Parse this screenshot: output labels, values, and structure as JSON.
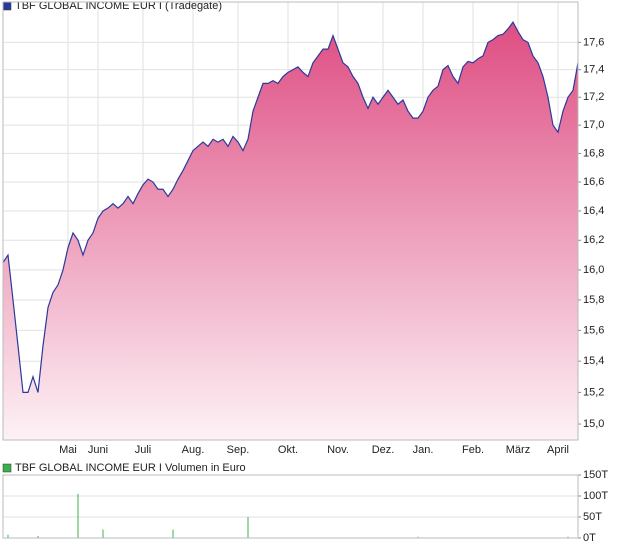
{
  "chart_data": [
    {
      "type": "area",
      "log_scale": true,
      "grid": true,
      "series": [
        {
          "name": "TBF GLOBAL INCOME EUR I (Tradegate)",
          "color": "#2a3a9a",
          "values": [
            16.05,
            16.1,
            15.8,
            15.5,
            15.2,
            15.2,
            15.3,
            15.2,
            15.5,
            15.75,
            15.85,
            15.9,
            16.0,
            16.15,
            16.25,
            16.2,
            16.1,
            16.2,
            16.25,
            16.35,
            16.4,
            16.42,
            16.45,
            16.42,
            16.45,
            16.5,
            16.45,
            16.52,
            16.58,
            16.62,
            16.6,
            16.55,
            16.55,
            16.5,
            16.55,
            16.62,
            16.68,
            16.75,
            16.82,
            16.85,
            16.88,
            16.85,
            16.9,
            16.88,
            16.9,
            16.85,
            16.92,
            16.88,
            16.82,
            16.9,
            17.1,
            17.2,
            17.3,
            17.3,
            17.32,
            17.3,
            17.35,
            17.38,
            17.4,
            17.42,
            17.38,
            17.35,
            17.45,
            17.5,
            17.55,
            17.55,
            17.65,
            17.55,
            17.45,
            17.42,
            17.35,
            17.3,
            17.2,
            17.12,
            17.2,
            17.15,
            17.2,
            17.25,
            17.2,
            17.15,
            17.18,
            17.1,
            17.05,
            17.05,
            17.1,
            17.2,
            17.25,
            17.28,
            17.4,
            17.43,
            17.35,
            17.3,
            17.42,
            17.46,
            17.45,
            17.48,
            17.5,
            17.6,
            17.62,
            17.65,
            17.66,
            17.7,
            17.75,
            17.68,
            17.62,
            17.6,
            17.5,
            17.45,
            17.35,
            17.2,
            17.0,
            16.95,
            17.1,
            17.2,
            17.25,
            17.45
          ]
        }
      ],
      "categories": [
        null,
        null,
        null,
        null,
        null,
        null,
        null,
        null,
        null,
        null,
        null,
        null,
        null,
        "Mai",
        null,
        null,
        null,
        null,
        null,
        "Juni",
        null,
        null,
        null,
        null,
        null,
        null,
        null,
        null,
        "Juli",
        null,
        null,
        null,
        null,
        null,
        null,
        null,
        null,
        null,
        "Aug.",
        null,
        null,
        null,
        null,
        null,
        null,
        null,
        null,
        "Sep.",
        null,
        null,
        null,
        null,
        null,
        null,
        null,
        null,
        null,
        "Okt.",
        null,
        null,
        null,
        null,
        null,
        null,
        null,
        null,
        null,
        "Nov.",
        null,
        null,
        null,
        null,
        null,
        null,
        null,
        null,
        "Dez.",
        null,
        null,
        null,
        null,
        null,
        null,
        null,
        "Jan.",
        null,
        null,
        null,
        null,
        null,
        null,
        null,
        null,
        null,
        "Feb.",
        null,
        null,
        null,
        null,
        null,
        null,
        null,
        null,
        "März",
        null,
        null,
        null,
        null,
        null,
        null,
        null,
        "April",
        null,
        null,
        null,
        null
      ],
      "ylim": [
        14.9,
        17.9
      ],
      "yticks": [
        {
          "value": 15.0,
          "label": "15,0"
        },
        {
          "value": 15.2,
          "label": "15,2"
        },
        {
          "value": 15.4,
          "label": "15,4"
        },
        {
          "value": 15.6,
          "label": "15,6"
        },
        {
          "value": 15.8,
          "label": "15,8"
        },
        {
          "value": 16.0,
          "label": "16,0"
        },
        {
          "value": 16.2,
          "label": "16,2"
        },
        {
          "value": 16.4,
          "label": "16,4"
        },
        {
          "value": 16.6,
          "label": "16,6"
        },
        {
          "value": 16.8,
          "label": "16,8"
        },
        {
          "value": 17.0,
          "label": "17,0"
        },
        {
          "value": 17.2,
          "label": "17,2"
        },
        {
          "value": 17.4,
          "label": "17,4"
        },
        {
          "value": 17.6,
          "label": "17,6"
        }
      ]
    },
    {
      "type": "bar",
      "grid": true,
      "series": [
        {
          "name": "TBF GLOBAL INCOME EUR I Volumen in Euro",
          "color": "#3cb04a",
          "values": [
            0,
            8,
            0,
            0,
            0,
            0,
            0,
            5,
            0,
            0,
            0,
            0,
            0,
            0,
            0,
            105,
            0,
            0,
            0,
            0,
            20,
            0,
            0,
            0,
            0,
            0,
            0,
            0,
            0,
            0,
            0,
            0,
            0,
            0,
            20,
            0,
            0,
            0,
            0,
            0,
            0,
            0,
            0,
            0,
            0,
            0,
            0,
            0,
            0,
            50,
            0,
            0,
            0,
            0,
            0,
            0,
            0,
            0,
            0,
            0,
            0,
            0,
            0,
            0,
            0,
            0,
            0,
            0,
            0,
            0,
            0,
            0,
            0,
            0,
            0,
            0,
            0,
            0,
            0,
            0,
            0,
            0,
            0,
            3,
            0,
            0,
            0,
            0,
            0,
            0,
            0,
            0,
            0,
            0,
            0,
            0,
            0,
            0,
            0,
            0,
            0,
            0,
            0,
            0,
            0,
            0,
            0,
            0,
            0,
            0,
            0,
            0,
            0,
            3,
            0,
            0
          ]
        }
      ],
      "ylim": [
        0,
        150
      ],
      "yticks": [
        {
          "value": 0,
          "label": "0T"
        },
        {
          "value": 50,
          "label": "50T"
        },
        {
          "value": 100,
          "label": "100T"
        },
        {
          "value": 150,
          "label": "150T"
        }
      ]
    }
  ]
}
